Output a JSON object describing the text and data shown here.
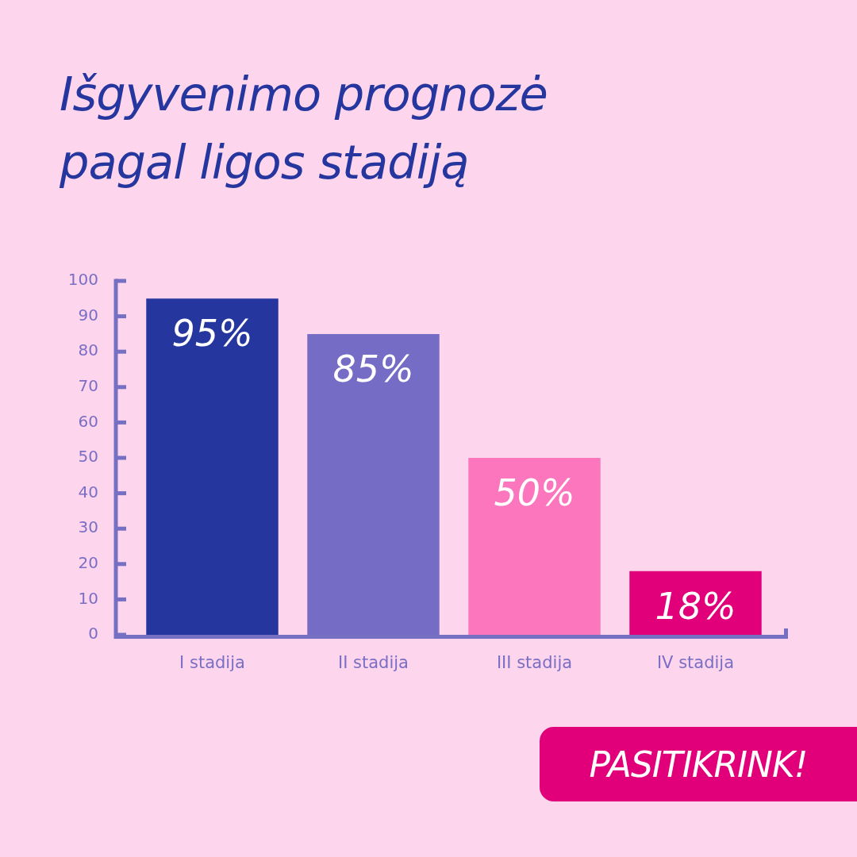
{
  "chart_data": {
    "type": "bar",
    "title": "Išgyvenimo prognozė pagal ligos stadiją",
    "categories": [
      "I stadija",
      "II stadija",
      "III stadija",
      "IV stadija"
    ],
    "values": [
      95,
      85,
      50,
      18
    ],
    "colors": [
      "#25369e",
      "#756cc5",
      "#fb76bd",
      "#e1007a"
    ],
    "value_labels": [
      "95%",
      "85%",
      "50%",
      "18%"
    ],
    "ylim": [
      0,
      100
    ],
    "yticks": [
      0,
      10,
      20,
      30,
      40,
      50,
      60,
      70,
      80,
      90,
      100
    ],
    "annotations": [
      "PASITIKRINK!"
    ]
  }
}
